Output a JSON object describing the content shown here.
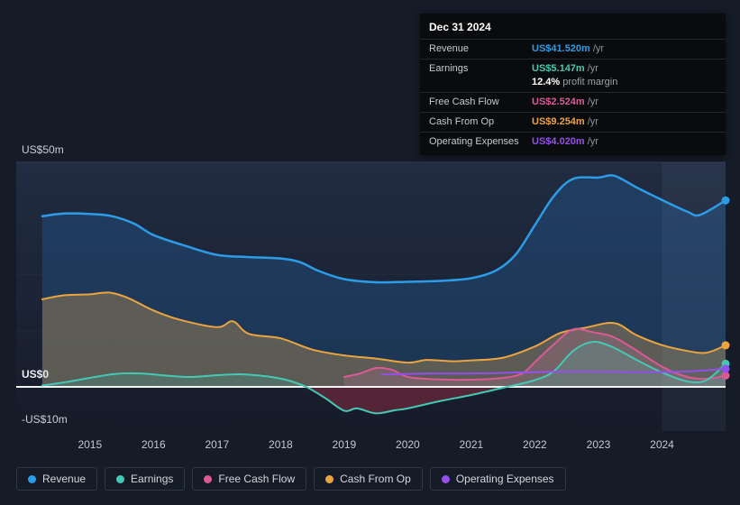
{
  "tooltip": {
    "date": "Dec 31 2024",
    "rows": [
      {
        "label": "Revenue",
        "value": "US$41.520m",
        "suffix": "/yr",
        "color": "#2D9CE7"
      },
      {
        "label": "Earnings",
        "value": "US$5.147m",
        "suffix": "/yr",
        "color": "#45C8B4",
        "extra_value": "12.4%",
        "extra_text": "profit margin"
      },
      {
        "label": "Free Cash Flow",
        "value": "US$2.524m",
        "suffix": "/yr",
        "color": "#DB5A96"
      },
      {
        "label": "Cash From Op",
        "value": "US$9.254m",
        "suffix": "/yr",
        "color": "#EBA43F"
      },
      {
        "label": "Operating Expenses",
        "value": "US$4.020m",
        "suffix": "/yr",
        "color": "#9350EC"
      }
    ]
  },
  "axis": {
    "y_labels": [
      {
        "text": "US$50m",
        "value": 50
      },
      {
        "text": "US$0",
        "value": 0
      },
      {
        "text": "-US$10m",
        "value": -10
      }
    ]
  },
  "legend": {
    "items": [
      {
        "label": "Revenue",
        "color": "#2D9CE7"
      },
      {
        "label": "Earnings",
        "color": "#45C8B4"
      },
      {
        "label": "Free Cash Flow",
        "color": "#DB5A96"
      },
      {
        "label": "Cash From Op",
        "color": "#EBA43F"
      },
      {
        "label": "Operating Expenses",
        "color": "#9350EC"
      }
    ]
  },
  "chart_data": {
    "type": "area",
    "x_range": [
      2013.84,
      2025.0
    ],
    "y_range": [
      -9.84,
      50
    ],
    "x_ticks": [
      2015,
      2016,
      2017,
      2018,
      2019,
      2020,
      2021,
      2022,
      2023,
      2024
    ],
    "y_ticks": [
      {
        "value": 50,
        "label": "US$50m"
      },
      {
        "value": 0,
        "label": "US$0"
      },
      {
        "value": -10,
        "label": "-US$10m"
      }
    ],
    "gridlines": [
      50,
      37.5,
      25,
      12.5
    ],
    "zero_line": 0,
    "highlight_from_x": 2024.0,
    "legend_position": "bottom",
    "series": [
      {
        "name": "Revenue",
        "color": "#2D9CE7",
        "line_width": 2.5,
        "fill": "rgba(35,92,150,0.38)",
        "end_marker": true,
        "points": [
          [
            2014.25,
            38.0
          ],
          [
            2014.6,
            38.6
          ],
          [
            2015.0,
            38.5
          ],
          [
            2015.35,
            38.0
          ],
          [
            2015.7,
            36.3
          ],
          [
            2016.0,
            33.8
          ],
          [
            2016.5,
            31.4
          ],
          [
            2017.0,
            29.4
          ],
          [
            2017.5,
            28.9
          ],
          [
            2018.0,
            28.6
          ],
          [
            2018.3,
            27.8
          ],
          [
            2018.6,
            25.8
          ],
          [
            2019.0,
            24.0
          ],
          [
            2019.5,
            23.3
          ],
          [
            2020.0,
            23.4
          ],
          [
            2020.5,
            23.6
          ],
          [
            2021.0,
            24.2
          ],
          [
            2021.4,
            26.0
          ],
          [
            2021.7,
            29.5
          ],
          [
            2022.0,
            36.0
          ],
          [
            2022.3,
            42.5
          ],
          [
            2022.6,
            46.3
          ],
          [
            2023.0,
            46.6
          ],
          [
            2023.25,
            47.0
          ],
          [
            2023.6,
            44.4
          ],
          [
            2024.0,
            41.6
          ],
          [
            2024.4,
            39.0
          ],
          [
            2024.6,
            38.3
          ],
          [
            2025.0,
            41.52
          ]
        ]
      },
      {
        "name": "Cash From Op",
        "color": "#EBA43F",
        "line_width": 2,
        "fill": "rgba(196,152,84,0.38)",
        "end_marker": true,
        "points": [
          [
            2014.25,
            19.5
          ],
          [
            2014.6,
            20.4
          ],
          [
            2015.0,
            20.6
          ],
          [
            2015.3,
            21.0
          ],
          [
            2015.6,
            19.8
          ],
          [
            2016.0,
            17.0
          ],
          [
            2016.4,
            15.0
          ],
          [
            2017.0,
            13.3
          ],
          [
            2017.25,
            14.6
          ],
          [
            2017.5,
            11.8
          ],
          [
            2018.0,
            10.8
          ],
          [
            2018.5,
            8.3
          ],
          [
            2019.0,
            7.0
          ],
          [
            2019.5,
            6.3
          ],
          [
            2020.0,
            5.4
          ],
          [
            2020.3,
            6.0
          ],
          [
            2020.7,
            5.7
          ],
          [
            2021.0,
            5.9
          ],
          [
            2021.5,
            6.5
          ],
          [
            2022.0,
            9.0
          ],
          [
            2022.4,
            12.0
          ],
          [
            2022.8,
            13.2
          ],
          [
            2023.25,
            14.2
          ],
          [
            2023.6,
            11.5
          ],
          [
            2024.0,
            9.3
          ],
          [
            2024.4,
            8.0
          ],
          [
            2024.7,
            7.6
          ],
          [
            2025.0,
            9.254
          ]
        ]
      },
      {
        "name": "Free Cash Flow",
        "color": "#DB5A96",
        "line_width": 2,
        "fill": "rgba(185,120,150,0.28)",
        "end_marker": true,
        "points": [
          [
            2019.0,
            2.2
          ],
          [
            2019.25,
            3.0
          ],
          [
            2019.5,
            4.2
          ],
          [
            2019.75,
            3.8
          ],
          [
            2020.0,
            2.2
          ],
          [
            2020.4,
            1.7
          ],
          [
            2021.0,
            1.6
          ],
          [
            2021.5,
            2.0
          ],
          [
            2021.8,
            3.0
          ],
          [
            2022.0,
            5.5
          ],
          [
            2022.3,
            9.5
          ],
          [
            2022.6,
            12.8
          ],
          [
            2022.9,
            12.2
          ],
          [
            2023.2,
            11.3
          ],
          [
            2023.5,
            9.0
          ],
          [
            2024.0,
            4.5
          ],
          [
            2024.4,
            2.2
          ],
          [
            2024.7,
            1.8
          ],
          [
            2025.0,
            2.524
          ]
        ]
      },
      {
        "name": "Earnings",
        "color": "#45C8B4",
        "line_width": 2,
        "fill_positive": "rgba(64,196,176,0.20)",
        "fill_negative": "rgba(168,48,72,0.42)",
        "end_marker": true,
        "points": [
          [
            2014.25,
            0.3
          ],
          [
            2014.6,
            1.0
          ],
          [
            2015.0,
            2.0
          ],
          [
            2015.4,
            2.9
          ],
          [
            2015.8,
            3.0
          ],
          [
            2016.2,
            2.5
          ],
          [
            2016.6,
            2.2
          ],
          [
            2017.0,
            2.6
          ],
          [
            2017.4,
            2.8
          ],
          [
            2017.8,
            2.3
          ],
          [
            2018.1,
            1.5
          ],
          [
            2018.4,
            0.0
          ],
          [
            2018.7,
            -2.5
          ],
          [
            2019.0,
            -5.3
          ],
          [
            2019.2,
            -4.8
          ],
          [
            2019.5,
            -5.9
          ],
          [
            2019.8,
            -5.2
          ],
          [
            2020.0,
            -4.8
          ],
          [
            2020.5,
            -3.2
          ],
          [
            2021.0,
            -1.8
          ],
          [
            2021.5,
            -0.2
          ],
          [
            2022.0,
            1.5
          ],
          [
            2022.3,
            3.5
          ],
          [
            2022.6,
            8.0
          ],
          [
            2022.9,
            10.0
          ],
          [
            2023.2,
            9.0
          ],
          [
            2023.6,
            6.0
          ],
          [
            2024.0,
            3.2
          ],
          [
            2024.4,
            1.2
          ],
          [
            2024.7,
            1.5
          ],
          [
            2025.0,
            5.147
          ]
        ]
      },
      {
        "name": "Operating Expenses",
        "color": "#9350EC",
        "line_width": 2,
        "fill": "none",
        "end_marker": true,
        "points": [
          [
            2019.6,
            2.8
          ],
          [
            2020.0,
            2.9
          ],
          [
            2020.5,
            3.0
          ],
          [
            2021.0,
            3.0
          ],
          [
            2021.5,
            3.1
          ],
          [
            2022.0,
            3.3
          ],
          [
            2022.5,
            3.4
          ],
          [
            2023.0,
            3.4
          ],
          [
            2023.5,
            3.3
          ],
          [
            2024.0,
            3.3
          ],
          [
            2024.5,
            3.5
          ],
          [
            2025.0,
            4.02
          ]
        ]
      }
    ]
  }
}
